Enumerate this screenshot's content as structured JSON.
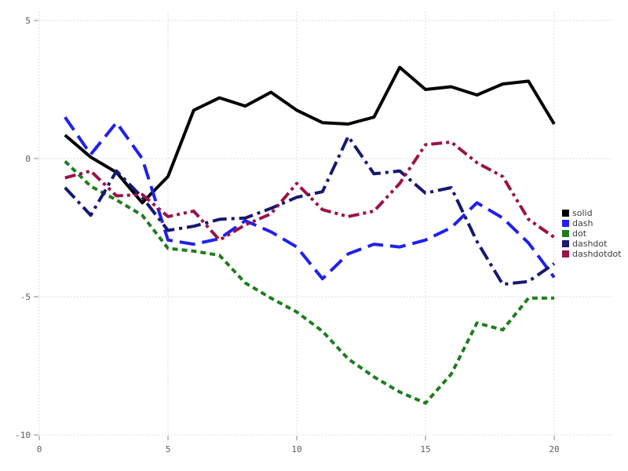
{
  "chart_data": {
    "type": "line",
    "title": "",
    "xlabel": "",
    "ylabel": "",
    "grid": true,
    "legend_position": "right",
    "xlim": [
      0,
      22.3
    ],
    "ylim": [
      -10,
      5.3
    ],
    "xticks": [
      "0",
      "5",
      "10",
      "15",
      "20"
    ],
    "xtick_values": [
      0,
      5,
      10,
      15,
      20
    ],
    "yticks": [
      "5",
      "0",
      "-5",
      "-10"
    ],
    "ytick_values": [
      5,
      0,
      -5,
      -10
    ],
    "x": [
      1,
      2,
      3,
      4,
      5,
      6,
      7,
      8,
      9,
      10,
      11,
      12,
      13,
      14,
      15,
      16,
      17,
      18,
      19,
      20
    ],
    "series": [
      {
        "name": "solid",
        "style": "solid",
        "color": "#000000",
        "values": [
          0.85,
          0.05,
          -0.5,
          -1.6,
          -0.65,
          1.75,
          2.2,
          1.9,
          2.4,
          1.75,
          1.3,
          1.25,
          1.5,
          3.3,
          2.5,
          2.6,
          2.3,
          2.7,
          2.8,
          1.25
        ]
      },
      {
        "name": "dash",
        "style": "dash",
        "color": "#2020ee",
        "values": [
          1.5,
          0.15,
          1.3,
          0.0,
          -2.95,
          -3.1,
          -2.9,
          -2.25,
          -2.65,
          -3.2,
          -4.35,
          -3.45,
          -3.1,
          -3.2,
          -2.95,
          -2.5,
          -1.6,
          -2.15,
          -3.05,
          -4.3
        ]
      },
      {
        "name": "dot",
        "style": "dot",
        "color": "#1e7d1e",
        "values": [
          -0.1,
          -1.0,
          -1.5,
          -2.05,
          -3.25,
          -3.35,
          -3.5,
          -4.5,
          -5.05,
          -5.55,
          -6.25,
          -7.25,
          -7.9,
          -8.45,
          -8.85,
          -7.8,
          -5.95,
          -6.2,
          -5.05,
          -5.05
        ]
      },
      {
        "name": "dashdot",
        "style": "dashdot",
        "color": "#181870",
        "values": [
          -1.05,
          -2.05,
          -0.45,
          -1.4,
          -2.6,
          -2.45,
          -2.2,
          -2.15,
          -1.8,
          -1.4,
          -1.2,
          0.8,
          -0.55,
          -0.45,
          -1.25,
          -1.05,
          -3.0,
          -4.55,
          -4.45,
          -3.8
        ]
      },
      {
        "name": "dashdotdot",
        "style": "dashdotdot",
        "color": "#9b1348",
        "values": [
          -0.7,
          -0.45,
          -1.35,
          -1.3,
          -2.1,
          -1.9,
          -2.95,
          -2.4,
          -2.0,
          -0.9,
          -1.85,
          -2.1,
          -1.9,
          -0.9,
          0.5,
          0.6,
          -0.15,
          -0.65,
          -2.2,
          -2.85
        ]
      }
    ],
    "grid_color": "#d4d4d4",
    "tick_color": "#888888"
  },
  "legend": {
    "labels": [
      "solid",
      "dash",
      "dot",
      "dashdot",
      "dashdotdot"
    ]
  }
}
